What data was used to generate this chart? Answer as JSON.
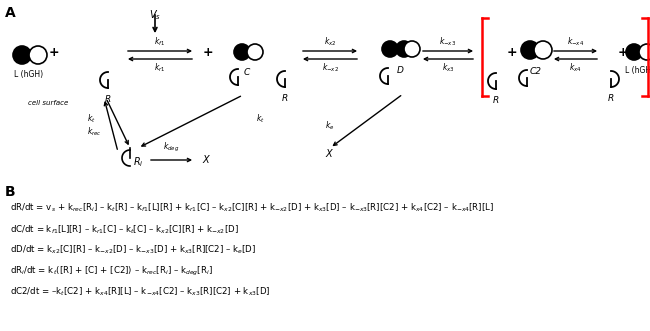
{
  "bg": "#ffffff",
  "panel_a": "A",
  "panel_b": "B",
  "vs_label": "$V_s$",
  "cell_surface_label": "cell surface",
  "L_label": "L (hGH)",
  "eq1": "dR/dt = v$_s$ + k$_{rec}$[R$_i$] – k$_t$[R] – k$_{f1}$[L][R] + k$_{r1}$[C] – k$_{x2}$[C][R] + k$_{-x2}$[D] + k$_{x3}$[D] – k$_{-x3}$[R][C2] + k$_{x4}$[C2] – k$_{-x4}$[R][L]",
  "eq2": "dC/dt = k$_{f1}$[L][R] – k$_{r1}$[C] – k$_t$[C] – k$_{x2}$[C][R] + k$_{-x2}$[D]",
  "eq3": "dD/dt = k$_{x2}$[C][R] – k$_{-x2}$[D] – k$_{-x3}$[D] + k$_{x3}$[R][C2] – k$_e$[D]",
  "eq4": "dR$_i$/dt = k$_t$([R] + [C] + [C2]) – k$_{rec}$[R$_i$] – k$_{deg}$[R$_i$]",
  "eq5": "dC2/dt = –k$_t$[C2] + k$_{x4}$[R][L] – k$_{-x4}$[C2] – k$_{x3}$[R][C2] + k$_{x3}$[D]"
}
